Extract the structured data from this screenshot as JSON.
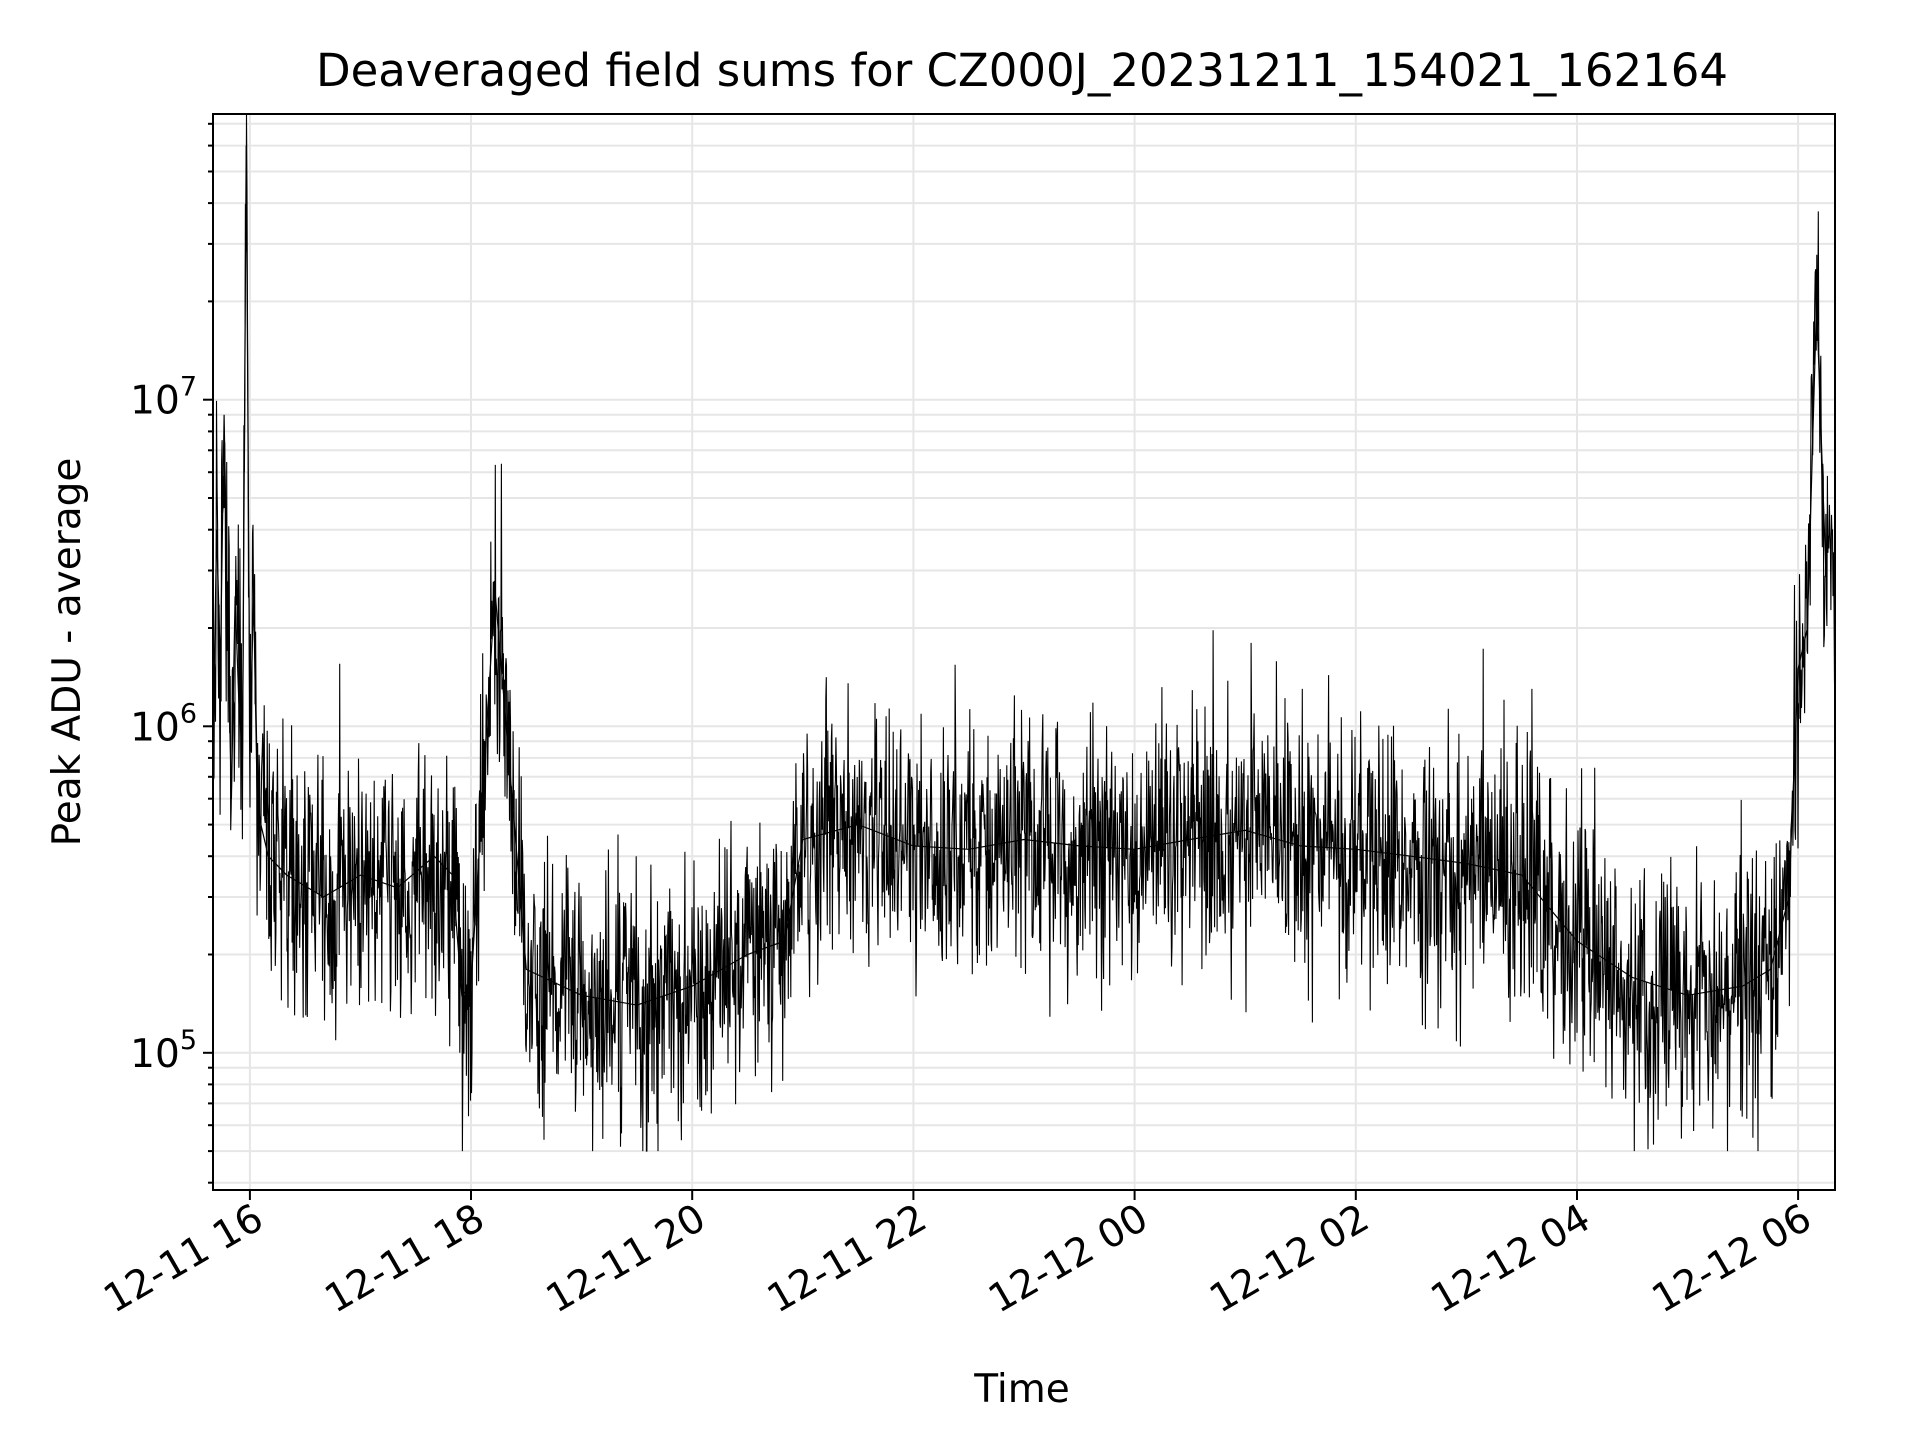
{
  "chart_data": {
    "type": "line",
    "title": "Deaveraged field sums for CZ000J_20231211_154021_162164",
    "xlabel": "Time",
    "ylabel": "Peak ADU - average",
    "yscale": "log",
    "ylim": [
      38000,
      75000000
    ],
    "xlim": [
      "2023-12-11 15:40",
      "2023-12-12 06:20"
    ],
    "grid": true,
    "line_color": "#000000",
    "grid_color": "#e6e6e6",
    "x_ticks": [
      {
        "value": "2023-12-11 16:00",
        "label": "12-11 16"
      },
      {
        "value": "2023-12-11 18:00",
        "label": "12-11 18"
      },
      {
        "value": "2023-12-11 20:00",
        "label": "12-11 20"
      },
      {
        "value": "2023-12-11 22:00",
        "label": "12-11 22"
      },
      {
        "value": "2023-12-12 00:00",
        "label": "12-12 00"
      },
      {
        "value": "2023-12-12 02:00",
        "label": "12-12 02"
      },
      {
        "value": "2023-12-12 04:00",
        "label": "12-12 04"
      },
      {
        "value": "2023-12-12 06:00",
        "label": "12-12 06"
      }
    ],
    "y_ticks": [
      {
        "value": 100000,
        "base": "10",
        "exp": "5"
      },
      {
        "value": 1000000,
        "base": "10",
        "exp": "6"
      },
      {
        "value": 10000000,
        "base": "10",
        "exp": "7"
      }
    ],
    "series": [
      {
        "x": [
          "2023-12-11 15:40",
          "2023-12-11 15:42",
          "2023-12-11 15:44",
          "2023-12-11 15:46",
          "2023-12-11 15:48",
          "2023-12-11 15:50",
          "2023-12-11 15:52",
          "2023-12-11 15:54",
          "2023-12-11 15:56",
          "2023-12-11 15:58",
          "2023-12-11 16:00",
          "2023-12-11 16:02",
          "2023-12-11 16:04",
          "2023-12-11 16:06",
          "2023-12-11 16:10",
          "2023-12-11 16:20",
          "2023-12-11 16:40",
          "2023-12-11 17:00",
          "2023-12-11 17:20",
          "2023-12-11 17:40",
          "2023-12-11 17:50",
          "2023-12-11 17:55",
          "2023-12-11 18:00",
          "2023-12-11 18:13",
          "2023-12-11 18:30",
          "2023-12-11 19:00",
          "2023-12-11 19:30",
          "2023-12-11 20:00",
          "2023-12-11 20:30",
          "2023-12-11 20:50",
          "2023-12-11 21:00",
          "2023-12-11 21:30",
          "2023-12-11 22:00",
          "2023-12-11 22:30",
          "2023-12-11 23:00",
          "2023-12-11 23:30",
          "2023-12-12 00:00",
          "2023-12-12 00:30",
          "2023-12-12 01:00",
          "2023-12-12 01:30",
          "2023-12-12 02:00",
          "2023-12-12 02:30",
          "2023-12-12 03:00",
          "2023-12-12 03:30",
          "2023-12-12 04:00",
          "2023-12-12 04:30",
          "2023-12-12 05:00",
          "2023-12-12 05:30",
          "2023-12-12 05:45",
          "2023-12-12 05:55",
          "2023-12-12 06:00",
          "2023-12-12 06:05",
          "2023-12-12 06:10",
          "2023-12-12 06:15"
        ],
        "y": [
          900000,
          4000000,
          1500000,
          9000000,
          2000000,
          600000,
          2500000,
          1200000,
          800000,
          60000000,
          900000,
          2500000,
          600000,
          500000,
          400000,
          350000,
          300000,
          350000,
          320000,
          400000,
          350000,
          150000,
          160000,
          2600000,
          180000,
          150000,
          140000,
          160000,
          200000,
          220000,
          450000,
          500000,
          430000,
          420000,
          450000,
          430000,
          420000,
          450000,
          480000,
          430000,
          420000,
          400000,
          380000,
          350000,
          220000,
          170000,
          150000,
          160000,
          180000,
          300000,
          1500000,
          2000000,
          20000000,
          3000000
        ]
      }
    ]
  }
}
